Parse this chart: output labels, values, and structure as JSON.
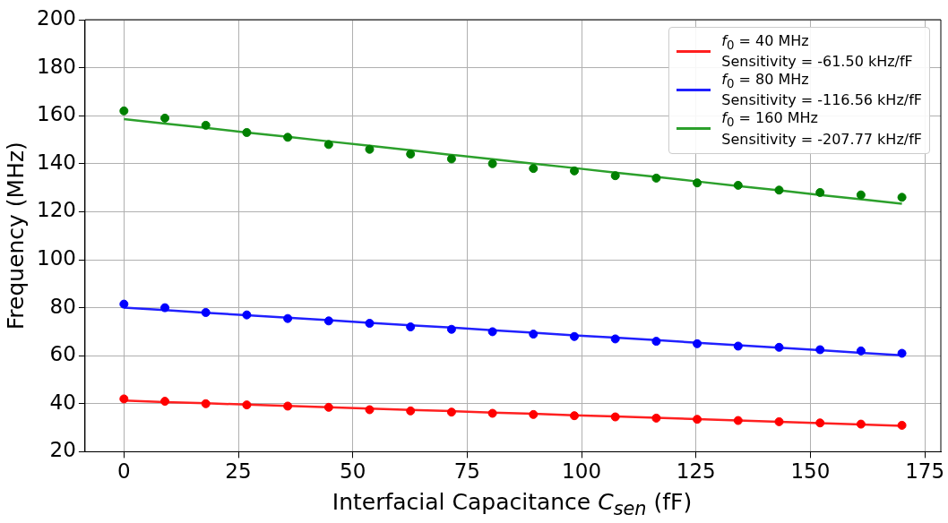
{
  "chart_data": {
    "type": "scatter",
    "xlabel": "Interfacial Capacitance C$_{sen}$ (fF)",
    "ylabel": "Frequency (MHz)",
    "x": [
      0,
      8.95,
      17.89,
      26.84,
      35.79,
      44.74,
      53.68,
      62.63,
      71.58,
      80.53,
      89.47,
      98.42,
      107.37,
      116.32,
      125.26,
      134.21,
      143.16,
      152.11,
      161.05,
      170
    ],
    "xlim": [
      -8.5,
      178.5
    ],
    "xticks": [
      0,
      25,
      50,
      75,
      100,
      125,
      150,
      175
    ],
    "ylim": [
      20,
      200
    ],
    "yticks": [
      20,
      40,
      60,
      80,
      100,
      120,
      140,
      160,
      180,
      200
    ],
    "grid": true,
    "legend": "top right",
    "series": [
      {
        "color": "#ff0000",
        "marker": "circle",
        "values": [
          42,
          41,
          40,
          39.5,
          39,
          38.5,
          37.5,
          37,
          36.5,
          36,
          35.5,
          35,
          34.5,
          34,
          33.5,
          33,
          32.5,
          32,
          31.5,
          31
        ]
      },
      {
        "color": "#0000ff",
        "marker": "circle",
        "values": [
          81.5,
          80,
          78,
          77,
          75.5,
          74.5,
          73.5,
          72,
          71,
          70,
          69,
          68,
          67,
          66,
          65,
          64,
          63.5,
          62.5,
          62,
          61
        ]
      },
      {
        "color": "#008000",
        "marker": "circle",
        "values": [
          162,
          159,
          156,
          153,
          151,
          148,
          146,
          144,
          142,
          140,
          138,
          137,
          135,
          134,
          132,
          131,
          129,
          128,
          127,
          126
        ]
      },
      {
        "type": "line",
        "name": "f$_{0}$ = 40 MHz\nSensitivity = -61.50 kHz/fF",
        "color": "#ff2020",
        "marker": "none",
        "values": [
          41.3,
          40.7,
          40.2,
          39.6,
          39.1,
          38.5,
          38.0,
          37.4,
          36.9,
          36.3,
          35.8,
          35.2,
          34.7,
          34.1,
          33.6,
          33.0,
          32.5,
          31.9,
          31.3,
          30.8
        ]
      },
      {
        "type": "line",
        "name": "f$_{0}$ = 80 MHz\nSensitivity = -116.56 kHz/fF",
        "color": "#2020ff",
        "marker": "none",
        "values": [
          80,
          79.0,
          77.9,
          76.9,
          75.8,
          74.8,
          73.7,
          72.7,
          71.7,
          70.6,
          69.6,
          68.5,
          67.5,
          66.5,
          65.4,
          64.4,
          63.3,
          62.3,
          61.2,
          60.2
        ]
      },
      {
        "type": "line",
        "name": "f$_{0}$ = 160 MHz\nSensitivity = -207.77 kHz/fF",
        "color": "#2ca02c",
        "marker": "none",
        "values": [
          158.6,
          156.7,
          154.9,
          153.0,
          151.2,
          149.3,
          147.5,
          145.6,
          143.7,
          141.9,
          140.0,
          138.2,
          136.3,
          134.5,
          132.6,
          130.7,
          128.9,
          127.0,
          125.2,
          123.3
        ]
      }
    ]
  }
}
